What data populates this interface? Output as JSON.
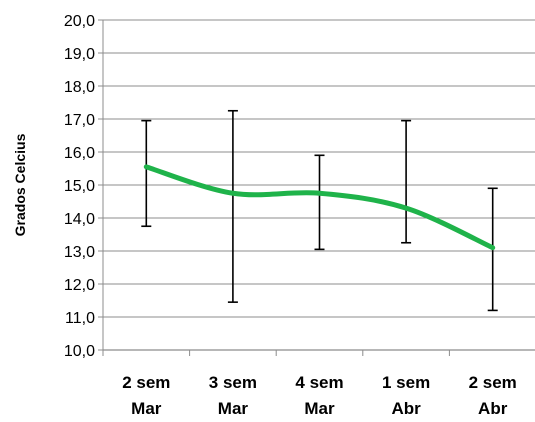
{
  "chart_data": {
    "type": "line",
    "ylabel": "Grados Celcius",
    "xlabel": "",
    "categories": [
      [
        "2 sem",
        "Mar"
      ],
      [
        "3 sem",
        "Mar"
      ],
      [
        "4 sem",
        "Mar"
      ],
      [
        "1 sem",
        "Abr"
      ],
      [
        "2 sem",
        "Abr"
      ]
    ],
    "ylim": [
      10.0,
      20.0
    ],
    "yticks": [
      "10,0",
      "11,0",
      "12,0",
      "13,0",
      "14,0",
      "15,0",
      "16,0",
      "17,0",
      "18,0",
      "19,0",
      "20,0"
    ],
    "grid": true,
    "series": [
      {
        "values": [
          15.55,
          14.75,
          14.75,
          14.3,
          13.1
        ],
        "error_low": [
          13.75,
          11.45,
          13.05,
          13.25,
          11.2
        ],
        "error_high": [
          16.95,
          17.25,
          15.9,
          16.95,
          14.9
        ],
        "color": "#1fb34a"
      }
    ]
  }
}
